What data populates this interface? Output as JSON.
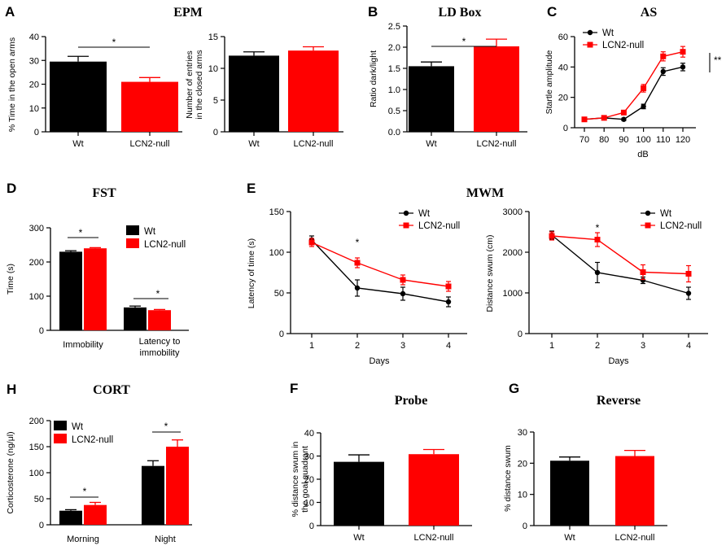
{
  "colors": {
    "wt": "#000000",
    "ko": "#ff0000"
  },
  "chart_data": [
    {
      "id": "A1",
      "panel": "A",
      "type": "bar",
      "title": "EPM",
      "categories": [
        "Wt",
        "LCN2-null"
      ],
      "values": [
        29.5,
        21.0
      ],
      "errors": [
        2.2,
        1.8
      ],
      "ylabel": "% Time in the open arms",
      "ylim": [
        0,
        40
      ],
      "yticks": [
        0,
        10,
        20,
        30,
        40
      ],
      "significance": [
        {
          "label": "*",
          "between": [
            0,
            1
          ]
        }
      ]
    },
    {
      "id": "A2",
      "type": "bar",
      "categories": [
        "Wt",
        "LCN2-null"
      ],
      "values": [
        12.0,
        12.8
      ],
      "errors": [
        0.6,
        0.6
      ],
      "ylabel": [
        "Number of entries",
        "in the closed arms"
      ],
      "ylim": [
        0,
        15
      ],
      "yticks": [
        0,
        5,
        10,
        15
      ]
    },
    {
      "id": "B",
      "panel": "B",
      "type": "bar",
      "title": "LD Box",
      "categories": [
        "Wt",
        "LCN2-null"
      ],
      "values": [
        1.55,
        2.02
      ],
      "errors": [
        0.1,
        0.17
      ],
      "ylabel": "Ratio dark/light",
      "ylim": [
        0,
        2.5
      ],
      "yticks": [
        "0.0",
        "0.5",
        "1.0",
        "1.5",
        "2.0",
        "2.5"
      ],
      "significance": [
        {
          "label": "*",
          "between": [
            0,
            1
          ]
        }
      ]
    },
    {
      "id": "C",
      "panel": "C",
      "type": "line",
      "title": "AS",
      "x": [
        70,
        80,
        90,
        100,
        110,
        120
      ],
      "xlabel": "dB",
      "ylabel": "Startle amplitude",
      "ylim": [
        0,
        60
      ],
      "yticks": [
        0,
        20,
        40,
        60
      ],
      "series": [
        {
          "name": "Wt",
          "values": [
            5.5,
            6.5,
            5.5,
            14,
            37,
            40
          ],
          "errors": [
            0.5,
            0.5,
            0.8,
            1.5,
            2.5,
            2.5
          ]
        },
        {
          "name": "LCN2-null",
          "values": [
            5.5,
            6.5,
            10,
            26,
            47,
            50
          ],
          "errors": [
            0.5,
            0.5,
            0.8,
            2.5,
            3,
            3.5
          ]
        }
      ],
      "significance": [
        {
          "label": "**"
        }
      ]
    },
    {
      "id": "D",
      "panel": "D",
      "type": "bar",
      "title": "FST",
      "categories": [
        "Immobility",
        "Latency to immobility"
      ],
      "ylabel": "Time (s)",
      "ylim": [
        0,
        300
      ],
      "yticks": [
        0,
        100,
        200,
        300
      ],
      "series": [
        {
          "name": "Wt",
          "values": [
            230,
            67
          ],
          "errors": [
            3,
            4
          ]
        },
        {
          "name": "LCN2-null",
          "values": [
            240,
            59
          ],
          "errors": [
            2,
            2
          ]
        }
      ],
      "significance": [
        {
          "label": "*",
          "category": 0
        },
        {
          "label": "*",
          "category": 1
        }
      ]
    },
    {
      "id": "E1",
      "panel": "E",
      "type": "line",
      "title": "MWM",
      "x": [
        1,
        2,
        3,
        4
      ],
      "xlabel": "Days",
      "ylabel": "Latency of time (s)",
      "ylim": [
        0,
        150
      ],
      "yticks": [
        0,
        50,
        100,
        150
      ],
      "series": [
        {
          "name": "Wt",
          "values": [
            115,
            56,
            49,
            39
          ],
          "errors": [
            5,
            10,
            8,
            6
          ]
        },
        {
          "name": "LCN2-null",
          "values": [
            112,
            87,
            66,
            58
          ],
          "errors": [
            5,
            6,
            6,
            6
          ]
        }
      ],
      "significance": [
        {
          "label": "*",
          "x": 2
        }
      ]
    },
    {
      "id": "E2",
      "type": "line",
      "x": [
        1,
        2,
        3,
        4
      ],
      "xlabel": "Days",
      "ylabel": "Distance swum (cm)",
      "ylim": [
        0,
        3000
      ],
      "yticks": [
        0,
        1000,
        2000,
        3000
      ],
      "series": [
        {
          "name": "Wt",
          "values": [
            2420,
            1500,
            1310,
            990
          ],
          "errors": [
            100,
            250,
            80,
            150
          ]
        },
        {
          "name": "LCN2-null",
          "values": [
            2400,
            2310,
            1510,
            1470
          ],
          "errors": [
            100,
            170,
            180,
            200
          ]
        }
      ],
      "significance": [
        {
          "label": "*",
          "x": 2
        }
      ]
    },
    {
      "id": "H",
      "panel": "H",
      "type": "bar",
      "title": "CORT",
      "categories": [
        "Morning",
        "Night"
      ],
      "ylabel": "Corticosterone (ng/μl)",
      "ylim": [
        0,
        200
      ],
      "yticks": [
        0,
        50,
        100,
        150,
        200
      ],
      "series": [
        {
          "name": "Wt",
          "values": [
            27,
            113
          ],
          "errors": [
            2,
            10
          ]
        },
        {
          "name": "LCN2-null",
          "values": [
            38,
            150
          ],
          "errors": [
            5,
            13
          ]
        }
      ],
      "significance": [
        {
          "label": "*",
          "category": 0
        },
        {
          "label": "*",
          "category": 1
        }
      ]
    },
    {
      "id": "F",
      "panel": "F",
      "type": "bar",
      "title": "Probe",
      "categories": [
        "Wt",
        "LCN2-null"
      ],
      "values": [
        27.5,
        30.8
      ],
      "errors": [
        3,
        2
      ],
      "ylabel": [
        "% distance swum in",
        "the goal quadrant"
      ],
      "ylim": [
        0,
        40
      ],
      "yticks": [
        0,
        10,
        20,
        30,
        40
      ]
    },
    {
      "id": "G",
      "panel": "G",
      "type": "bar",
      "title": "Reverse",
      "categories": [
        "Wt",
        "LCN2-null"
      ],
      "values": [
        20.8,
        22.3
      ],
      "errors": [
        1.2,
        1.8
      ],
      "ylabel": "% distance swum",
      "ylim": [
        0,
        30
      ],
      "yticks": [
        0,
        10,
        20,
        30
      ]
    }
  ]
}
